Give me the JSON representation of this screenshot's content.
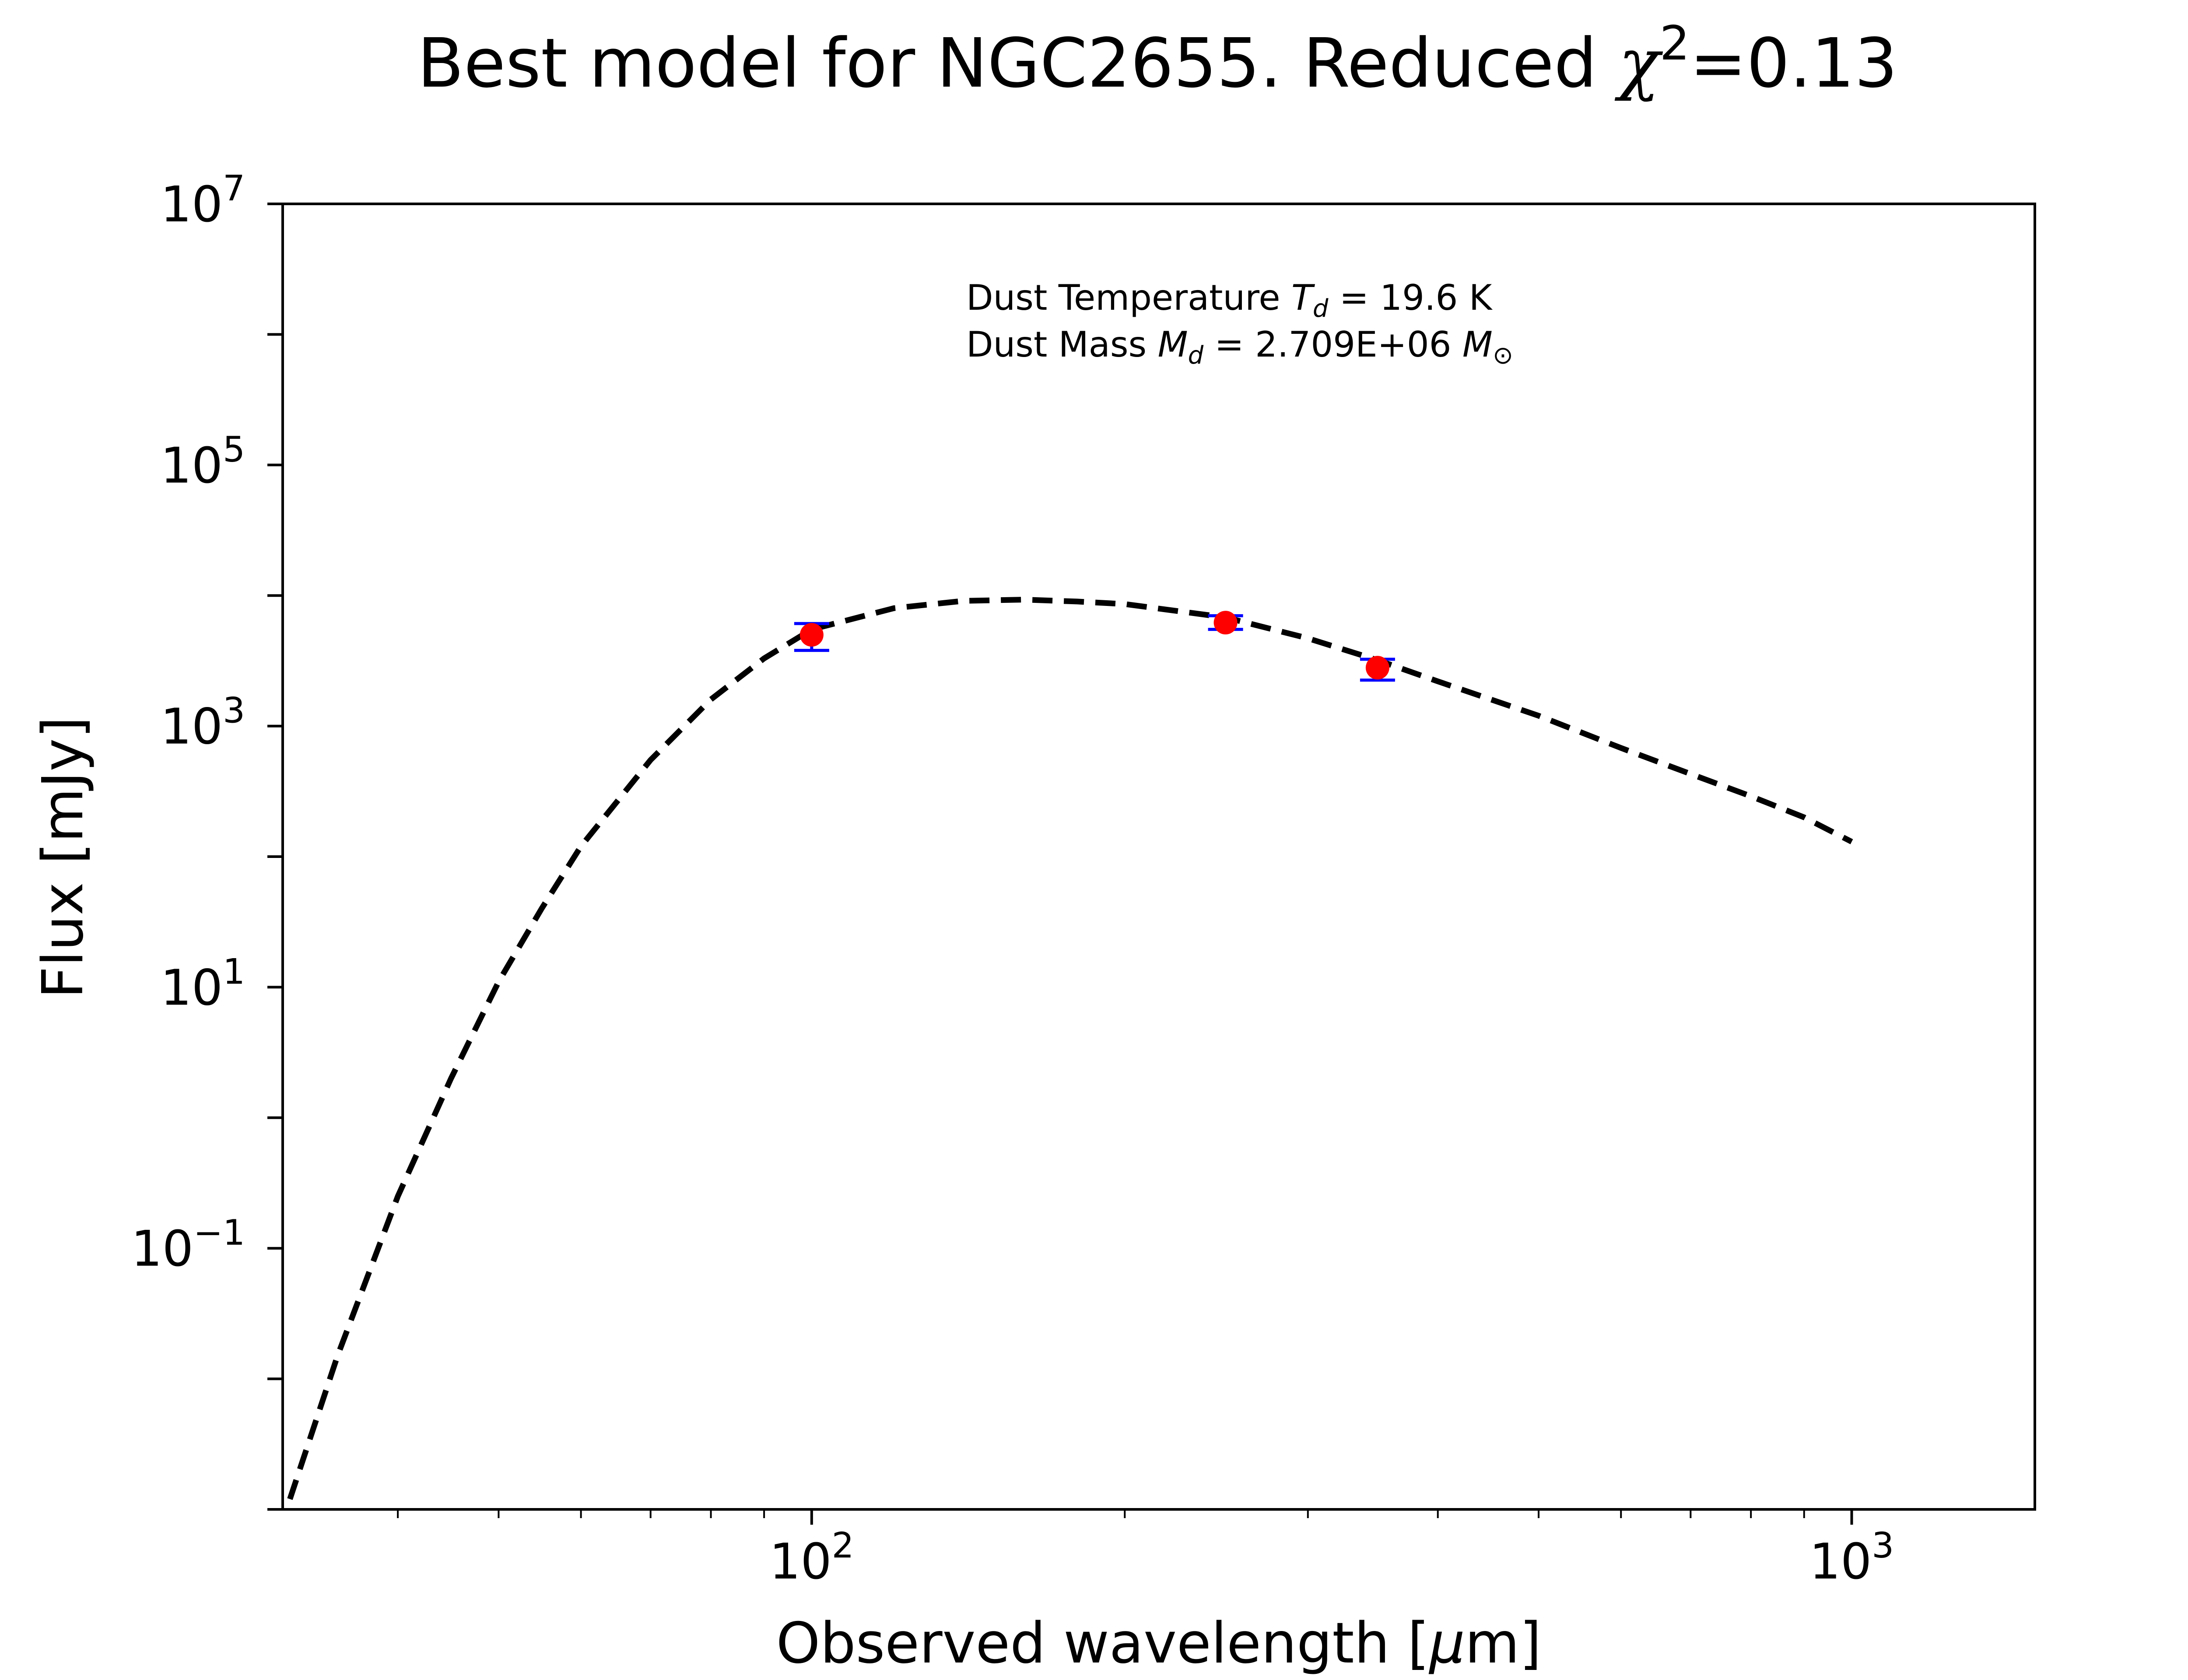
{
  "chart_data": {
    "type": "scatter",
    "title": {
      "prefix": "Best model for NGC2655. Reduced ",
      "symbol": "χ",
      "exponent": "2",
      "suffix": "=0.13"
    },
    "xlabel": {
      "prefix": "Observed wavelength [",
      "mu": "μ",
      "suffix": "m]"
    },
    "ylabel": "Flux [mJy]",
    "x_scale": "log",
    "y_scale": "log",
    "xlim": [
      31,
      1500
    ],
    "ylim": [
      0.001,
      10000000
    ],
    "x_ticks": [
      {
        "value": 100,
        "base": "10",
        "exp": "2"
      },
      {
        "value": 1000,
        "base": "10",
        "exp": "3"
      }
    ],
    "y_ticks": [
      {
        "value": 10000000,
        "base": "10",
        "exp": "7"
      },
      {
        "value": 100000,
        "base": "10",
        "exp": "5"
      },
      {
        "value": 1000,
        "base": "10",
        "exp": "3"
      },
      {
        "value": 10,
        "base": "10",
        "exp": "1"
      },
      {
        "value": 0.1,
        "base": "10",
        "exp": "−1"
      }
    ],
    "annotation": {
      "line1": {
        "prefix": "Dust Temperature ",
        "symbol": "T",
        "sub": "d",
        "suffix": " = 19.6 K"
      },
      "line2": {
        "prefix": "Dust Mass ",
        "symbol": "M",
        "sub": "d",
        "middle": " = 2.709E+06 ",
        "unit": "M",
        "unit_sub": "⊙"
      }
    },
    "series": [
      {
        "kind": "observed",
        "x": [
          100,
          250,
          350
        ],
        "y": [
          5000,
          6200,
          2800
        ],
        "yerr_low": [
          1200,
          700,
          550
        ],
        "yerr_high": [
          1100,
          800,
          450
        ]
      },
      {
        "kind": "model",
        "style": "dashed",
        "x": [
          31.5,
          35,
          40,
          45,
          50,
          55,
          60,
          70,
          80,
          90,
          100,
          120,
          140,
          160,
          180,
          200,
          250,
          300,
          350,
          400,
          500,
          600,
          700,
          800,
          900,
          1000
        ],
        "y": [
          0.0012,
          0.015,
          0.25,
          2.0,
          11,
          40,
          120,
          550,
          1600,
          3300,
          5500,
          8000,
          9100,
          9300,
          9000,
          8600,
          6800,
          4700,
          3200,
          2200,
          1200,
          680,
          430,
          290,
          200,
          130
        ]
      }
    ],
    "colors": {
      "marker": "#ff0000",
      "errorbar": "#0000ff",
      "model_line": "#000000",
      "axes": "#000000"
    },
    "grid": false
  }
}
